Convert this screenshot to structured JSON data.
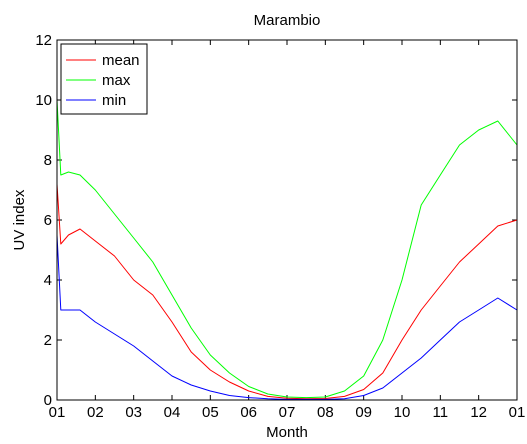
{
  "chart_data": {
    "type": "line",
    "title": "Marambio",
    "xlabel": "Month",
    "ylabel": "UV index",
    "xlim": [
      0,
      12
    ],
    "ylim": [
      0,
      12
    ],
    "x_tick_labels": [
      "01",
      "02",
      "03",
      "04",
      "05",
      "06",
      "07",
      "08",
      "09",
      "10",
      "11",
      "12",
      "01"
    ],
    "y_ticks": [
      0,
      2,
      4,
      6,
      8,
      10,
      12
    ],
    "grid": false,
    "legend_position": "top-left",
    "x_unit": "month",
    "series": [
      {
        "name": "mean",
        "color": "#ff0000",
        "x": [
          0,
          0.1,
          0.3,
          0.6,
          1,
          1.5,
          2,
          2.5,
          3,
          3.5,
          4,
          4.5,
          5,
          5.5,
          6,
          6.5,
          7,
          7.5,
          8,
          8.5,
          9,
          9.5,
          10,
          10.5,
          11,
          11.5,
          12
        ],
        "y": [
          7.2,
          5.2,
          5.5,
          5.7,
          5.3,
          4.8,
          4.0,
          3.5,
          2.6,
          1.6,
          1.0,
          0.6,
          0.3,
          0.12,
          0.06,
          0.04,
          0.05,
          0.12,
          0.35,
          0.9,
          2.0,
          3.0,
          3.8,
          4.6,
          5.2,
          5.8,
          6.0
        ]
      },
      {
        "name": "max",
        "color": "#00ff00",
        "x": [
          0,
          0.1,
          0.3,
          0.6,
          1,
          1.5,
          2,
          2.5,
          3,
          3.5,
          4,
          4.5,
          5,
          5.5,
          6,
          6.5,
          7,
          7.5,
          8,
          8.5,
          9,
          9.5,
          10,
          10.5,
          11,
          11.5,
          12
        ],
        "y": [
          10.0,
          7.5,
          7.6,
          7.5,
          7.0,
          6.2,
          5.4,
          4.6,
          3.5,
          2.4,
          1.5,
          0.9,
          0.45,
          0.2,
          0.1,
          0.08,
          0.1,
          0.3,
          0.8,
          2.0,
          4.0,
          6.5,
          7.5,
          8.5,
          9.0,
          9.3,
          8.5
        ]
      },
      {
        "name": "min",
        "color": "#0000ff",
        "x": [
          0,
          0.1,
          0.3,
          0.6,
          1,
          1.5,
          2,
          2.5,
          3,
          3.5,
          4,
          4.5,
          5,
          5.5,
          6,
          6.5,
          7,
          7.5,
          8,
          8.5,
          9,
          9.5,
          10,
          10.5,
          11,
          11.5,
          12
        ],
        "y": [
          5.5,
          3.0,
          3.0,
          3.0,
          2.6,
          2.2,
          1.8,
          1.3,
          0.8,
          0.5,
          0.3,
          0.15,
          0.08,
          0.04,
          0.02,
          0.02,
          0.02,
          0.04,
          0.15,
          0.4,
          0.9,
          1.4,
          2.0,
          2.6,
          3.0,
          3.4,
          3.0
        ]
      }
    ]
  }
}
